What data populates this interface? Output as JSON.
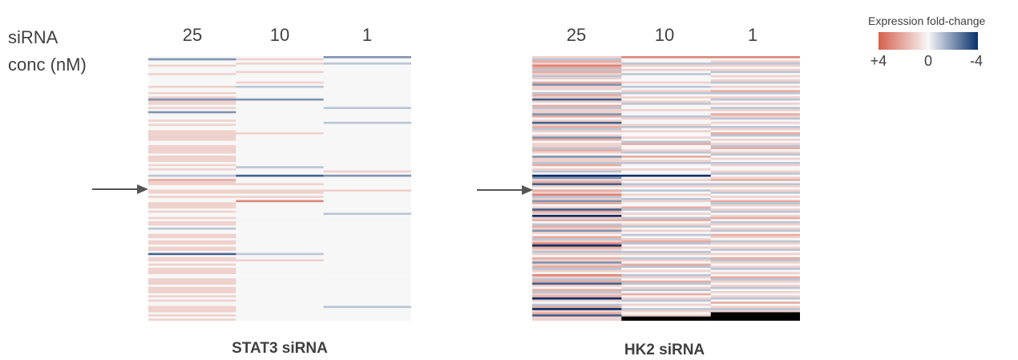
{
  "row_label": {
    "line1": "siRNA",
    "line2": "conc (nM)"
  },
  "legend": {
    "title": "Expression fold-change",
    "ticks": [
      "+4",
      "0",
      "-4"
    ],
    "colors": {
      "positive": "#d6604d",
      "neutral": "#f7f7f7",
      "negative": "#08306b"
    }
  },
  "chart_data": [
    {
      "type": "heatmap",
      "title": "STAT3 siRNA",
      "x_categories": [
        "25",
        "10",
        "1"
      ],
      "value_range": [
        -4,
        4
      ],
      "marked_row": 56,
      "rows": 125,
      "values": {
        "25": [
          0,
          -2,
          0,
          0,
          1,
          0,
          0,
          0,
          1,
          0,
          0,
          0,
          0,
          0,
          1,
          0,
          0,
          1,
          0,
          1,
          -2,
          1,
          1,
          0,
          1,
          0,
          -2,
          0,
          0,
          0,
          1,
          0,
          1,
          0,
          0,
          1,
          1,
          1,
          1,
          1,
          0,
          0,
          1,
          1,
          1,
          1,
          0,
          1,
          1,
          1,
          0,
          1,
          0,
          1,
          0,
          0,
          -1,
          0,
          2,
          1,
          1,
          0,
          0,
          1,
          1,
          0,
          1,
          0,
          0,
          1,
          1,
          1,
          0,
          1,
          0,
          0,
          1,
          0,
          1,
          1,
          0,
          -1,
          0,
          0,
          1,
          1,
          0,
          1,
          1,
          0,
          1,
          1,
          0,
          -3,
          0,
          1,
          1,
          0,
          1,
          0,
          1,
          1,
          1,
          0,
          0,
          1,
          1,
          1,
          0,
          1,
          1,
          1,
          0,
          1,
          0,
          1,
          0,
          0,
          1,
          1,
          1,
          0,
          1,
          0,
          1
        ],
        "10": [
          0,
          1,
          0,
          1,
          0,
          0,
          0,
          1,
          0,
          0,
          0,
          0,
          1,
          0,
          -1,
          0,
          0,
          0,
          0,
          0,
          -2,
          0,
          0,
          0,
          0,
          0,
          0,
          0,
          0,
          0,
          0,
          0,
          0,
          0,
          0,
          0,
          1,
          0,
          0,
          0,
          0,
          0,
          0,
          0,
          0,
          0,
          0,
          0,
          0,
          0,
          0,
          0,
          -1,
          0,
          0,
          0,
          -3,
          0,
          0,
          0,
          1,
          0,
          0,
          1,
          1,
          0,
          1,
          0,
          3,
          0,
          0,
          0,
          0,
          0,
          0,
          0,
          0,
          0,
          0,
          0,
          0,
          0,
          0,
          0,
          0,
          0,
          0,
          0,
          0,
          0,
          0,
          0,
          0,
          -1,
          0,
          0,
          1,
          0,
          0,
          0,
          0,
          0,
          0,
          0,
          0,
          0,
          0,
          0,
          0,
          0,
          0,
          0,
          0,
          0,
          0,
          0,
          0,
          0,
          0,
          0,
          0,
          0,
          0,
          0,
          0
        ],
        "1": [
          -2,
          0,
          0,
          -1,
          0,
          0,
          0,
          0,
          0,
          0,
          0,
          0,
          0,
          0,
          0,
          0,
          0,
          0,
          0,
          0,
          0,
          0,
          0,
          0,
          -1,
          0,
          0,
          0,
          0,
          0,
          0,
          -1,
          0,
          0,
          0,
          0,
          0,
          0,
          0,
          0,
          0,
          0,
          0,
          0,
          0,
          0,
          0,
          0,
          0,
          0,
          0,
          0,
          0,
          0,
          1,
          0,
          -2,
          0,
          0,
          0,
          0,
          0,
          0,
          1,
          0,
          0,
          0,
          0,
          0,
          0,
          0,
          0,
          0,
          0,
          -1,
          0,
          0,
          0,
          0,
          0,
          0,
          0,
          0,
          0,
          0,
          0,
          0,
          0,
          0,
          0,
          0,
          0,
          0,
          0,
          0,
          0,
          0,
          0,
          0,
          0,
          0,
          0,
          0,
          0,
          0,
          0,
          0,
          0,
          0,
          0,
          0,
          0,
          0,
          0,
          0,
          0,
          0,
          0,
          -1,
          0,
          0,
          0,
          0,
          0,
          0
        ]
      }
    },
    {
      "type": "heatmap",
      "title": "HK2 siRNA",
      "x_categories": [
        "25",
        "10",
        "1"
      ],
      "value_range": [
        -4,
        4
      ],
      "marked_row": 56,
      "rows": 125,
      "values": {
        "25": [
          1,
          -1,
          2,
          1,
          3,
          2,
          -1,
          2,
          1,
          -1,
          1,
          0,
          2,
          -2,
          1,
          1,
          0,
          -1,
          2,
          1,
          -3,
          1,
          0,
          2,
          -1,
          1,
          1,
          -2,
          2,
          0,
          1,
          -3,
          1,
          2,
          -1,
          1,
          0,
          1,
          -2,
          2,
          0,
          1,
          1,
          -1,
          2,
          1,
          0,
          -2,
          1,
          1,
          -1,
          2,
          0,
          1,
          -1,
          0,
          -4,
          -2,
          1,
          2,
          -3,
          1,
          0,
          2,
          1,
          3,
          -1,
          1,
          -2,
          2,
          0,
          1,
          -3,
          2,
          1,
          -4,
          1,
          2,
          0,
          -1,
          2,
          1,
          -2,
          1,
          0,
          2,
          -1,
          1,
          3,
          -4,
          2,
          1,
          -1,
          1,
          0,
          2,
          1,
          -2,
          1,
          2,
          -1,
          1,
          0,
          3,
          1,
          -1,
          2,
          -3,
          1,
          0,
          2,
          -1,
          1,
          2,
          -4,
          1,
          0,
          -1,
          2,
          -4,
          1,
          2,
          -3,
          1,
          1
        ],
        "10": [
          3,
          0,
          0,
          -1,
          1,
          0,
          1,
          0,
          -1,
          0,
          0,
          0,
          1,
          0,
          -1,
          0,
          1,
          -1,
          0,
          1,
          0,
          1,
          -1,
          0,
          0,
          1,
          0,
          0,
          -1,
          1,
          0,
          0,
          1,
          -1,
          0,
          1,
          0,
          0,
          1,
          0,
          -1,
          2,
          0,
          0,
          1,
          -1,
          0,
          2,
          0,
          1,
          -1,
          0,
          0,
          1,
          0,
          0,
          -4,
          0,
          1,
          0,
          -1,
          1,
          0,
          -1,
          0,
          1,
          0,
          -1,
          1,
          0,
          0,
          2,
          -1,
          0,
          1,
          0,
          -1,
          2,
          0,
          1,
          -1,
          0,
          1,
          0,
          -1,
          0,
          1,
          2,
          -1,
          0,
          1,
          0,
          -1,
          1,
          0,
          -1,
          1,
          0,
          2,
          -1,
          0,
          1,
          0,
          -1,
          1,
          0,
          2,
          -1,
          0,
          1,
          -1,
          0,
          2,
          0,
          1,
          -1,
          0,
          1,
          0,
          -1,
          1,
          0,
          1
        ],
        "1": [
          3,
          0,
          1,
          -1,
          1,
          0,
          1,
          -1,
          0,
          1,
          0,
          1,
          -1,
          0,
          1,
          0,
          2,
          -1,
          0,
          1,
          -1,
          0,
          1,
          0,
          -1,
          1,
          0,
          2,
          1,
          -1,
          0,
          1,
          0,
          -1,
          1,
          0,
          2,
          -1,
          0,
          1,
          0,
          1,
          -1,
          2,
          0,
          1,
          -1,
          0,
          1,
          0,
          -1,
          1,
          0,
          0,
          1,
          -1,
          0,
          1,
          2,
          0,
          -1,
          1,
          0,
          1,
          -1,
          0,
          1,
          0,
          2,
          -1,
          1,
          0,
          1,
          -1,
          0,
          1,
          2,
          0,
          -1,
          1,
          0,
          1,
          -1,
          0,
          2,
          1,
          0,
          -1,
          1,
          0,
          1,
          -1,
          0,
          1,
          0,
          2,
          -1,
          1,
          0,
          1,
          -1,
          0,
          1,
          0,
          2,
          -1,
          1,
          0,
          1,
          -1,
          0,
          1,
          0,
          1,
          -1,
          0,
          2,
          0,
          1,
          -1,
          1
        ]
      }
    }
  ]
}
